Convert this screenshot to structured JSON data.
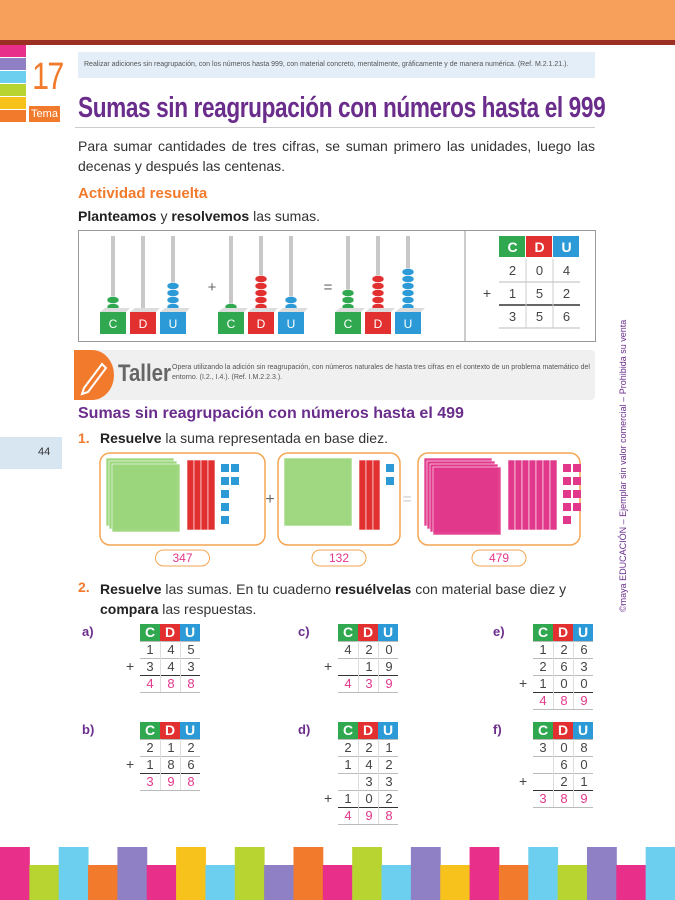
{
  "header": {
    "tema_number": "17",
    "tema_label": "Tema",
    "objective": "Realizar adiciones sin reagrupación, con los números hasta 999, con material concreto, mentalmente, gráficamente y de manera numérica. (Ref. M.2.1.21.).",
    "title": "Sumas sin reagrupación con números hasta el 999"
  },
  "intro": "Para sumar cantidades de tres cifras, se suman primero las unidades, luego las decenas y después las centenas.",
  "activity": {
    "title": "Actividad resuelta",
    "instruction": [
      {
        "text": "Planteamos",
        "bold": true
      },
      {
        "text": " y ",
        "bold": false
      },
      {
        "text": "resolvemos",
        "bold": true
      },
      {
        "text": " las sumas.",
        "bold": false
      }
    ],
    "abacus_plus": "+",
    "abacus_equals": "=",
    "place_labels": [
      "C",
      "D",
      "U"
    ],
    "table": {
      "headers": [
        "C",
        "D",
        "U"
      ],
      "operator": "+",
      "rows": [
        [
          "2",
          "0",
          "4"
        ],
        [
          "1",
          "5",
          "2"
        ]
      ],
      "result": [
        "3",
        "5",
        "6"
      ]
    }
  },
  "taller": {
    "label": "Taller",
    "text": "Opera utilizando la adición sin reagrupación, con números naturales de hasta tres cifras en el contexto de un problema matemático del entorno. (I.2., I.4.). (Ref. I.M.2.2.3.)."
  },
  "section_title": "Sumas sin reagrupación con números hasta el 499",
  "exercise1": {
    "number": "1.",
    "text": [
      {
        "text": "Resuelve",
        "bold": true
      },
      {
        "text": " la suma representada en base diez.",
        "bold": false
      }
    ],
    "plus": "+",
    "equals": "=",
    "values": [
      "347",
      "132",
      "479"
    ]
  },
  "exercise2": {
    "number": "2.",
    "text": [
      {
        "text": "Resuelve",
        "bold": true
      },
      {
        "text": " las sumas. En tu cuaderno ",
        "bold": false
      },
      {
        "text": "resuélvelas",
        "bold": true
      },
      {
        "text": " con material base diez y ",
        "bold": false
      },
      {
        "text": "compara",
        "bold": true
      },
      {
        "text": " las respuestas.",
        "bold": false
      }
    ],
    "headers": [
      "C",
      "D",
      "U"
    ],
    "problems": [
      {
        "letter": "a)",
        "operator": "+",
        "rows": [
          [
            "1",
            "4",
            "5"
          ],
          [
            "3",
            "4",
            "3"
          ]
        ],
        "result": [
          "4",
          "8",
          "8"
        ]
      },
      {
        "letter": "b)",
        "operator": "+",
        "rows": [
          [
            "2",
            "1",
            "2"
          ],
          [
            "1",
            "8",
            "6"
          ]
        ],
        "result": [
          "3",
          "9",
          "8"
        ]
      },
      {
        "letter": "c)",
        "operator": "+",
        "rows": [
          [
            "4",
            "2",
            "0"
          ],
          [
            null,
            "1",
            "9"
          ]
        ],
        "result": [
          "4",
          "3",
          "9"
        ]
      },
      {
        "letter": "d)",
        "operator": "+",
        "rows": [
          [
            "2",
            "2",
            "1"
          ],
          [
            "1",
            "4",
            "2"
          ],
          [
            null,
            "3",
            "3"
          ],
          [
            "1",
            "0",
            "2"
          ]
        ],
        "result": [
          "4",
          "9",
          "8"
        ]
      },
      {
        "letter": "e)",
        "operator": "+",
        "rows": [
          [
            "1",
            "2",
            "6"
          ],
          [
            "2",
            "6",
            "3"
          ],
          [
            "1",
            "0",
            "0"
          ]
        ],
        "result": [
          "4",
          "8",
          "9"
        ]
      },
      {
        "letter": "f)",
        "operator": "+",
        "rows": [
          [
            "3",
            "0",
            "8"
          ],
          [
            null,
            "6",
            "0"
          ],
          [
            null,
            "2",
            "1"
          ]
        ],
        "result": [
          "3",
          "8",
          "9"
        ]
      }
    ]
  },
  "page_number": "44",
  "side_note": "©maya EDUCACIÓN – Ejemplar sin valor comercial – Prohibida su venta"
}
